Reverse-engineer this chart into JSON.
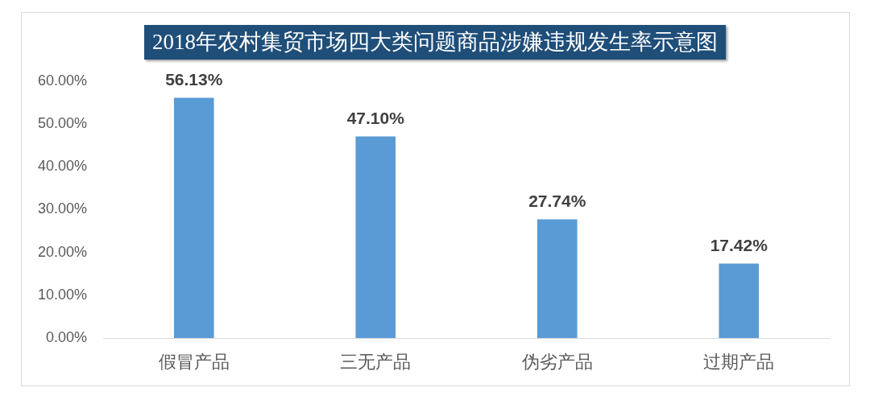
{
  "chart_data": {
    "type": "bar",
    "title": "2018年农村集贸市场四大类问题商品涉嫌违规发生率示意图",
    "categories": [
      "假冒产品",
      "三无产品",
      "伪劣产品",
      "过期产品"
    ],
    "values": [
      56.13,
      47.1,
      27.74,
      17.42
    ],
    "color": "#5b9bd5",
    "value_labels": [
      "56.13%",
      "47.10%",
      "27.74%",
      "17.42%"
    ],
    "ylim": [
      0,
      60
    ],
    "yticks": [
      {
        "value": 0,
        "label": "0.00%"
      },
      {
        "value": 10,
        "label": "10.00%"
      },
      {
        "value": 20,
        "label": "20.00%"
      },
      {
        "value": 30,
        "label": "30.00%"
      },
      {
        "value": 40,
        "label": "40.00%"
      },
      {
        "value": 50,
        "label": "50.00%"
      },
      {
        "value": 60,
        "label": "60.00%"
      }
    ],
    "grid": false,
    "legend": false
  }
}
